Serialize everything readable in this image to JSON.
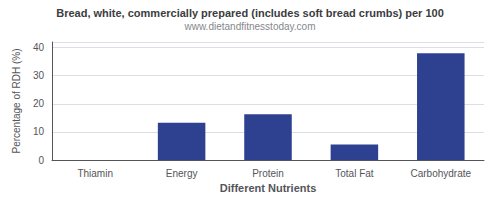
{
  "chart_data": {
    "type": "bar",
    "title": "Bread, white, commercially prepared (includes soft bread crumbs) per 100",
    "subtitle": "www.dietandfitnesstoday.com",
    "xlabel": "Different Nutrients",
    "ylabel": "Percentage of RDH (%)",
    "categories": [
      "Thiamin",
      "Energy",
      "Protein",
      "Total Fat",
      "Carbohydrate"
    ],
    "values": [
      0,
      13.3,
      16.3,
      5.5,
      38.0
    ],
    "color": "#2e4090",
    "ylim": [
      0,
      42
    ],
    "yticks": [
      0,
      10,
      20,
      30,
      40
    ],
    "grid": true
  }
}
